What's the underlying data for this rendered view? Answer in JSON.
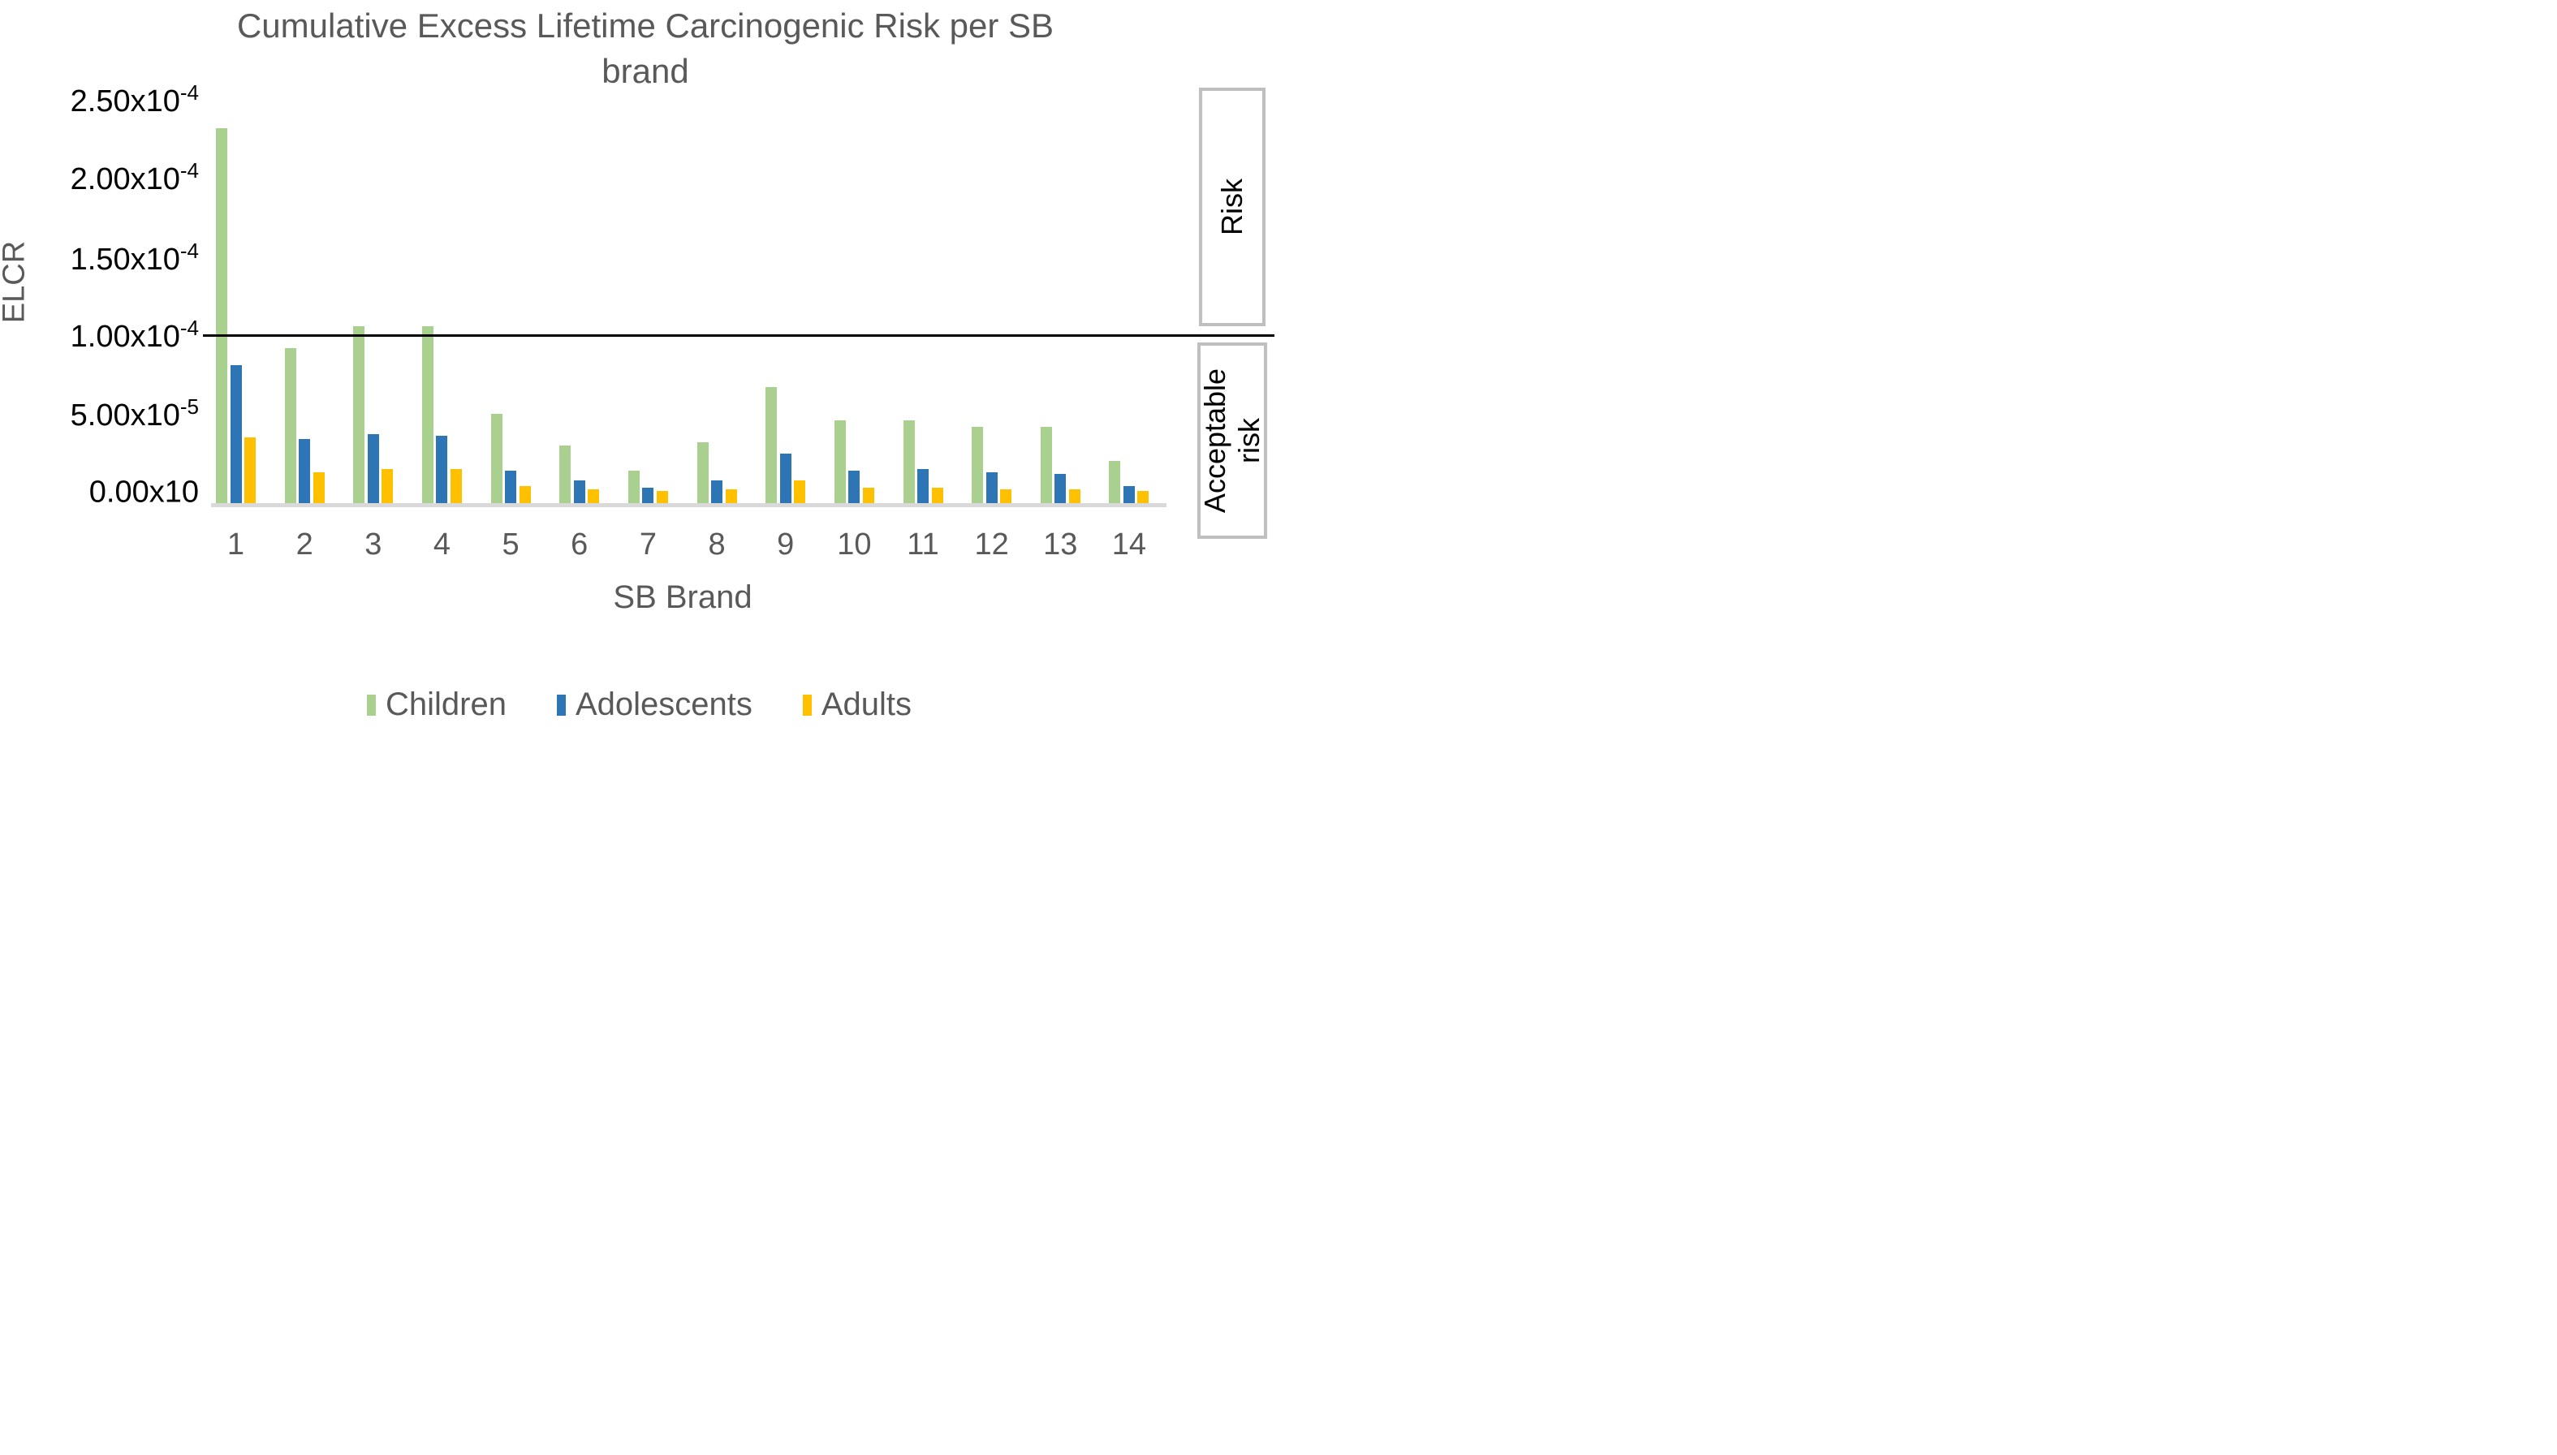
{
  "title": {
    "line1": "Cumulative Excess Lifetime Carcinogenic Risk per SB",
    "line2": "brand"
  },
  "y_axis": {
    "label": "ELCR",
    "ticks": [
      {
        "base": "2.50x10",
        "exp": "-4"
      },
      {
        "base": "2.00x10",
        "exp": "-4"
      },
      {
        "base": "1.50x10",
        "exp": "-4"
      },
      {
        "base": "1.00x10",
        "exp": "-4"
      },
      {
        "base": "5.00x10",
        "exp": "-5"
      },
      {
        "base": "0.00x10",
        "exp": ""
      }
    ]
  },
  "x_axis": {
    "label": "SB Brand",
    "categories": [
      "1",
      "2",
      "3",
      "4",
      "5",
      "6",
      "7",
      "8",
      "9",
      "10",
      "11",
      "12",
      "13",
      "14"
    ]
  },
  "legend": {
    "items": [
      {
        "label": "Children",
        "color": "#A9D08E"
      },
      {
        "label": "Adolescents",
        "color": "#2E75B6"
      },
      {
        "label": "Adults",
        "color": "#FFC000"
      }
    ]
  },
  "annotations": {
    "risk_box_label": "Risk",
    "acceptable_box_label": "Acceptable\nrisk",
    "threshold_line_value": "1.00x10-4"
  },
  "colors": {
    "children_green": "#A9D08E",
    "adolescents_blue": "#2E75B6",
    "adults_yellow": "#FFC000",
    "axis_strip_gray": "#D9D9D9",
    "text_gray": "#595959",
    "tick_text_black": "#000000",
    "box_border_gray": "#BFBFBF",
    "threshold_line_black": "#000000"
  },
  "chart_data": {
    "type": "bar",
    "title": "Cumulative Excess Lifetime Carcinogenic Risk per SB brand",
    "xlabel": "SB Brand",
    "ylabel": "ELCR",
    "categories": [
      1,
      2,
      3,
      4,
      5,
      6,
      7,
      8,
      9,
      10,
      11,
      12,
      13,
      14
    ],
    "value_unit": "x10^-5",
    "ylim": [
      "0.00x10",
      "2.50x10^-4"
    ],
    "grid": false,
    "legend_position": "bottom",
    "series": [
      {
        "name": "Children",
        "color": "#A9D08E",
        "values_x1e5": [
          23.2,
          9.2,
          10.6,
          10.6,
          5.0,
          3.0,
          1.4,
          3.2,
          6.7,
          4.6,
          4.6,
          4.2,
          4.2,
          2.0
        ]
      },
      {
        "name": "Adolescents",
        "color": "#2E75B6",
        "values_x1e5": [
          8.1,
          3.4,
          3.7,
          3.6,
          1.4,
          0.8,
          0.3,
          0.8,
          2.5,
          1.4,
          1.5,
          1.3,
          1.2,
          0.4
        ]
      },
      {
        "name": "Adults",
        "color": "#FFC000",
        "values_x1e5": [
          3.5,
          1.3,
          1.5,
          1.5,
          0.4,
          0.2,
          0.1,
          0.2,
          0.8,
          0.3,
          0.3,
          0.2,
          0.2,
          0.1
        ]
      }
    ],
    "reference_line": {
      "value_x1e5": 10,
      "label": "Acceptable risk threshold (1.00x10^-4)",
      "style": "solid black"
    },
    "regions": [
      {
        "label": "Risk",
        "range_x1e5": [
          10,
          25
        ]
      },
      {
        "label": "Acceptable risk",
        "range_x1e5": [
          0,
          10
        ]
      }
    ]
  }
}
